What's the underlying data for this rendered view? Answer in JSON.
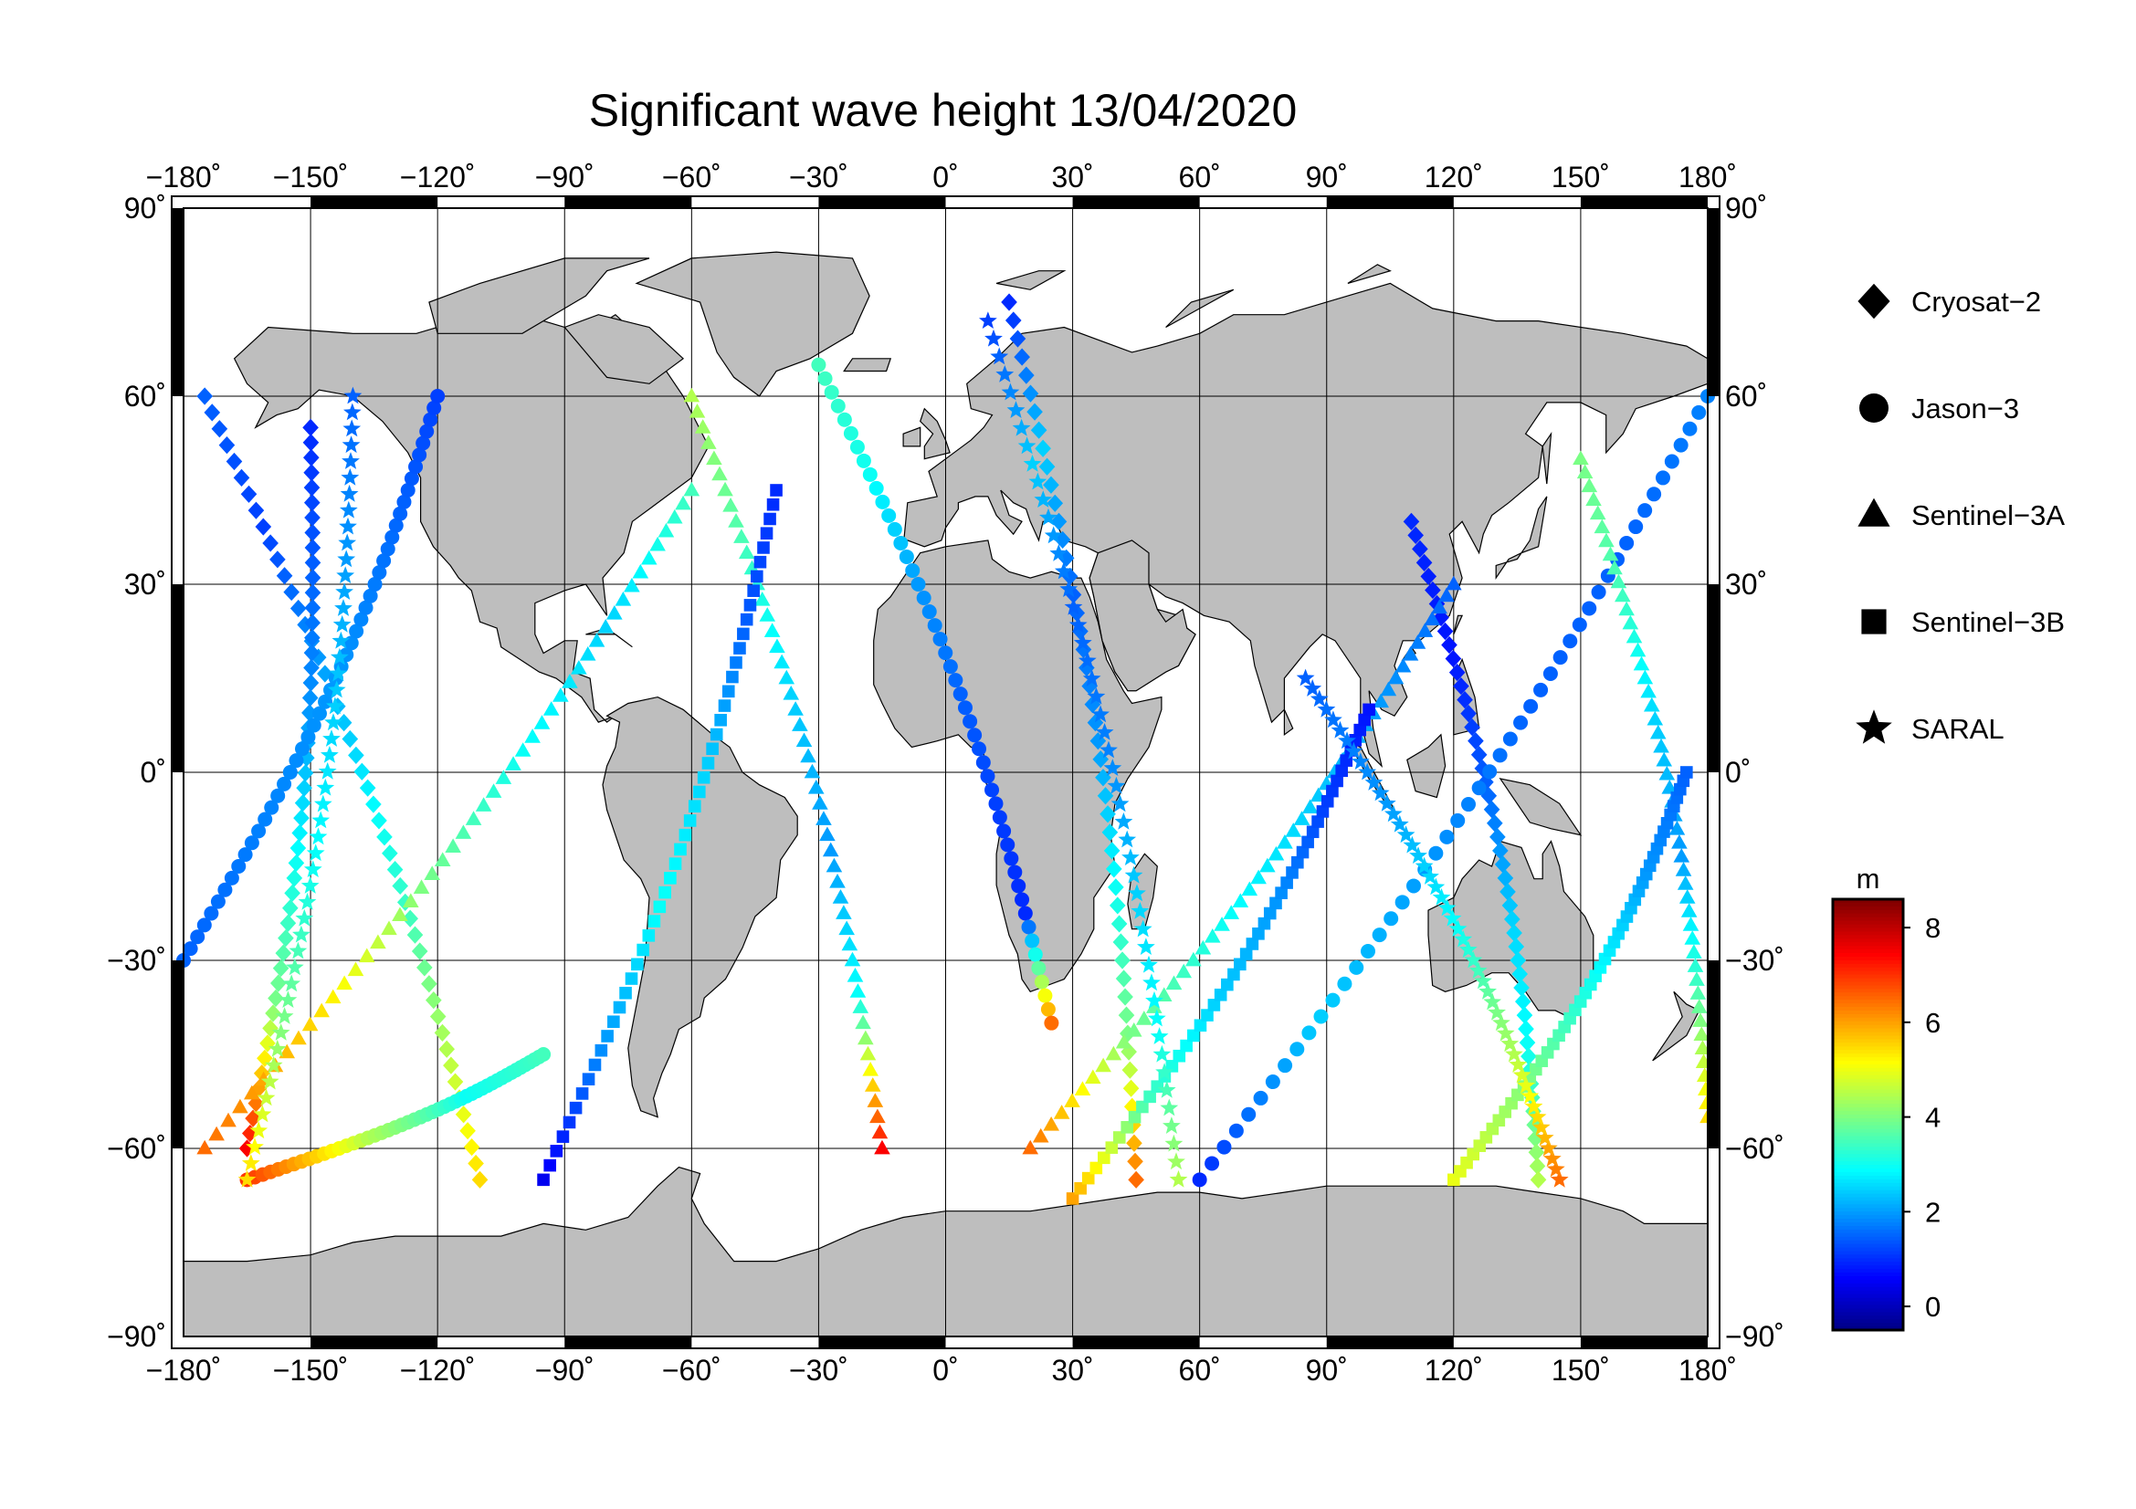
{
  "title": "Significant wave height 13/04/2020",
  "map": {
    "projection": "equirectangular",
    "lon_range": [
      -180,
      180
    ],
    "lat_range": [
      -90,
      90
    ],
    "grid_step_deg": 30,
    "land_color": "#bebebe",
    "ocean_color": "#ffffff"
  },
  "axes": {
    "lon_ticks": [
      "−180˚",
      "−150˚",
      "−120˚",
      "−90˚",
      "−60˚",
      "−30˚",
      "0˚",
      "30˚",
      "60˚",
      "90˚",
      "120˚",
      "150˚",
      "180˚"
    ],
    "lat_ticks": [
      "90˚",
      "60˚",
      "30˚",
      "0˚",
      "−30˚",
      "−60˚",
      "−90˚"
    ]
  },
  "legend": {
    "items": [
      {
        "label": "Cryosat−2",
        "symbol": "diamond"
      },
      {
        "label": "Jason−3",
        "symbol": "circle"
      },
      {
        "label": "Sentinel−3A",
        "symbol": "triangle"
      },
      {
        "label": "Sentinel−3B",
        "symbol": "square"
      },
      {
        "label": "SARAL",
        "symbol": "star"
      }
    ]
  },
  "colorbar": {
    "unit": "m",
    "min": -0.5,
    "max": 8.6,
    "ticks": [
      "0",
      "2",
      "4",
      "6",
      "8"
    ],
    "colormap": "jet"
  },
  "chart_data": {
    "type": "scatter",
    "title": "Significant wave height 13/04/2020",
    "xlabel": "",
    "ylabel": "",
    "xlim": [
      -180,
      180
    ],
    "ylim": [
      -90,
      90
    ],
    "value_unit": "m",
    "series": [
      {
        "name": "Cryosat−2",
        "symbol": "diamond",
        "tracks": [
          {
            "lon0": -175,
            "lat0": 60,
            "lon1": -110,
            "lat1": -65,
            "hs": [
              1.5,
              1.2,
              2.0,
              2.8,
              3.5,
              4.5,
              5.5
            ]
          },
          {
            "lon0": 15,
            "lat0": 75,
            "lon1": 45,
            "lat1": -65,
            "hs": [
              1.0,
              2.5,
              1.5,
              2.0,
              3.0,
              4.0,
              6.5
            ]
          },
          {
            "lon0": 110,
            "lat0": 40,
            "lon1": 140,
            "lat1": -65,
            "hs": [
              1.0,
              0.8,
              1.5,
              2.5,
              3.0,
              4.5
            ]
          },
          {
            "lon0": -165,
            "lat0": -60,
            "lon1": -150,
            "lat1": 55,
            "hs": [
              7.5,
              4.0,
              3.0,
              2.0,
              1.5,
              1.0
            ]
          }
        ]
      },
      {
        "name": "Jason−3",
        "symbol": "circle",
        "tracks": [
          {
            "lon0": -180,
            "lat0": -30,
            "lon1": -120,
            "lat1": 60,
            "hs": [
              1.5,
              1.8,
              2.0,
              1.6,
              1.2
            ]
          },
          {
            "lon0": -30,
            "lat0": 65,
            "lon1": 25,
            "lat1": -40,
            "hs": [
              3.5,
              3.0,
              2.0,
              1.5,
              1.2,
              1.0,
              6.5
            ]
          },
          {
            "lon0": 60,
            "lat0": -65,
            "lon1": 180,
            "lat1": 60,
            "hs": [
              1.0,
              2.5,
              2.0,
              1.5,
              1.5,
              1.8
            ]
          },
          {
            "lon0": -165,
            "lat0": -65,
            "lon1": -95,
            "lat1": -45,
            "hs": [
              7.0,
              4.5,
              3.0,
              3.5
            ]
          }
        ]
      },
      {
        "name": "Sentinel−3A",
        "symbol": "triangle",
        "tracks": [
          {
            "lon0": -175,
            "lat0": -60,
            "lon1": -60,
            "lat1": 45,
            "hs": [
              6.5,
              5.5,
              4.0,
              3.0,
              2.5,
              3.5
            ]
          },
          {
            "lon0": -60,
            "lat0": 60,
            "lon1": -15,
            "lat1": -60,
            "hs": [
              4.5,
              3.5,
              2.5,
              2.0,
              3.0,
              7.5
            ]
          },
          {
            "lon0": 20,
            "lat0": -60,
            "lon1": 120,
            "lat1": 30,
            "hs": [
              6.5,
              4.0,
              3.0,
              2.5,
              2.0,
              1.5
            ]
          },
          {
            "lon0": 150,
            "lat0": 50,
            "lon1": 180,
            "lat1": -55,
            "hs": [
              4.0,
              3.5,
              2.5,
              2.0,
              3.5,
              5.5
            ]
          }
        ]
      },
      {
        "name": "Sentinel−3B",
        "symbol": "square",
        "tracks": [
          {
            "lon0": -95,
            "lat0": -65,
            "lon1": -40,
            "lat1": 45,
            "hs": [
              0.5,
              2.0,
              3.0,
              2.5,
              1.5,
              1.0
            ]
          },
          {
            "lon0": 30,
            "lat0": -68,
            "lon1": 100,
            "lat1": 10,
            "hs": [
              6.0,
              3.5,
              2.5,
              2.0,
              1.2,
              0.8
            ]
          },
          {
            "lon0": 120,
            "lat0": -65,
            "lon1": 175,
            "lat1": 0,
            "hs": [
              5.0,
              4.0,
              3.0,
              2.0,
              1.5
            ]
          }
        ]
      },
      {
        "name": "SARAL",
        "symbol": "star",
        "tracks": [
          {
            "lon0": -165,
            "lat0": -65,
            "lon1": -140,
            "lat1": 60,
            "hs": [
              5.5,
              4.0,
              3.0,
              2.5,
              2.0,
              1.5
            ]
          },
          {
            "lon0": 10,
            "lat0": 72,
            "lon1": 55,
            "lat1": -65,
            "hs": [
              1.2,
              2.5,
              1.5,
              1.8,
              2.5,
              3.0,
              4.5
            ]
          },
          {
            "lon0": 145,
            "lat0": -65,
            "lon1": 85,
            "lat1": 15,
            "hs": [
              6.5,
              4.5,
              3.0,
              2.0,
              1.5
            ]
          }
        ]
      }
    ]
  }
}
